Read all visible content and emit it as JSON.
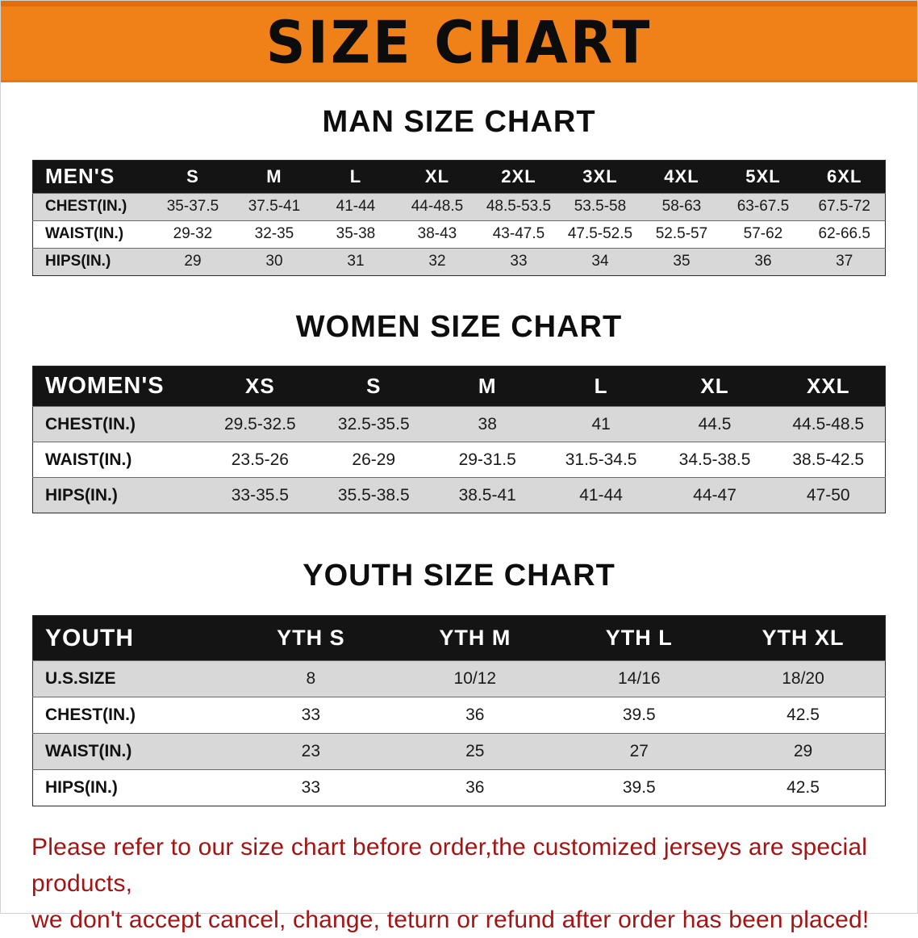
{
  "banner": {
    "title": "SIZE CHART"
  },
  "sections": {
    "men": {
      "heading": "MAN SIZE CHART",
      "table": {
        "corner": "MEN'S",
        "sizes": [
          "S",
          "M",
          "L",
          "XL",
          "2XL",
          "3XL",
          "4XL",
          "5XL",
          "6XL"
        ],
        "rows": [
          {
            "label": "CHEST(IN.)",
            "values": [
              "35-37.5",
              "37.5-41",
              "41-44",
              "44-48.5",
              "48.5-53.5",
              "53.5-58",
              "58-63",
              "63-67.5",
              "67.5-72"
            ]
          },
          {
            "label": "WAIST(IN.)",
            "values": [
              "29-32",
              "32-35",
              "35-38",
              "38-43",
              "43-47.5",
              "47.5-52.5",
              "52.5-57",
              "57-62",
              "62-66.5"
            ]
          },
          {
            "label": "HIPS(IN.)",
            "values": [
              "29",
              "30",
              "31",
              "32",
              "33",
              "34",
              "35",
              "36",
              "37"
            ]
          }
        ]
      }
    },
    "women": {
      "heading": "WOMEN SIZE CHART",
      "table": {
        "corner": "WOMEN'S",
        "sizes": [
          "XS",
          "S",
          "M",
          "L",
          "XL",
          "XXL"
        ],
        "rows": [
          {
            "label": "CHEST(IN.)",
            "values": [
              "29.5-32.5",
              "32.5-35.5",
              "38",
              "41",
              "44.5",
              "44.5-48.5"
            ]
          },
          {
            "label": "WAIST(IN.)",
            "values": [
              "23.5-26",
              "26-29",
              "29-31.5",
              "31.5-34.5",
              "34.5-38.5",
              "38.5-42.5"
            ]
          },
          {
            "label": "HIPS(IN.)",
            "values": [
              "33-35.5",
              "35.5-38.5",
              "38.5-41",
              "41-44",
              "44-47",
              "47-50"
            ]
          }
        ]
      }
    },
    "youth": {
      "heading": "YOUTH SIZE CHART",
      "table": {
        "corner": "YOUTH",
        "sizes": [
          "YTH S",
          "YTH M",
          "YTH L",
          "YTH XL"
        ],
        "rows": [
          {
            "label": "U.S.SIZE",
            "values": [
              "8",
              "10/12",
              "14/16",
              "18/20"
            ]
          },
          {
            "label": "CHEST(IN.)",
            "values": [
              "33",
              "36",
              "39.5",
              "42.5"
            ]
          },
          {
            "label": "WAIST(IN.)",
            "values": [
              "23",
              "25",
              "27",
              "29"
            ]
          },
          {
            "label": "HIPS(IN.)",
            "values": [
              "33",
              "36",
              "39.5",
              "42.5"
            ]
          }
        ]
      }
    }
  },
  "disclaimer": {
    "line1": "Please refer to our size chart before order,the customized jerseys are special products,",
    "line2": "we don't accept cancel, change, teturn or refund after order has been placed!"
  },
  "colors": {
    "banner_orange": "#f08119",
    "header_black": "#141414",
    "row_gray": "#d8d8d8",
    "row_white": "#ffffff",
    "disclaimer_red": "#a31414"
  }
}
